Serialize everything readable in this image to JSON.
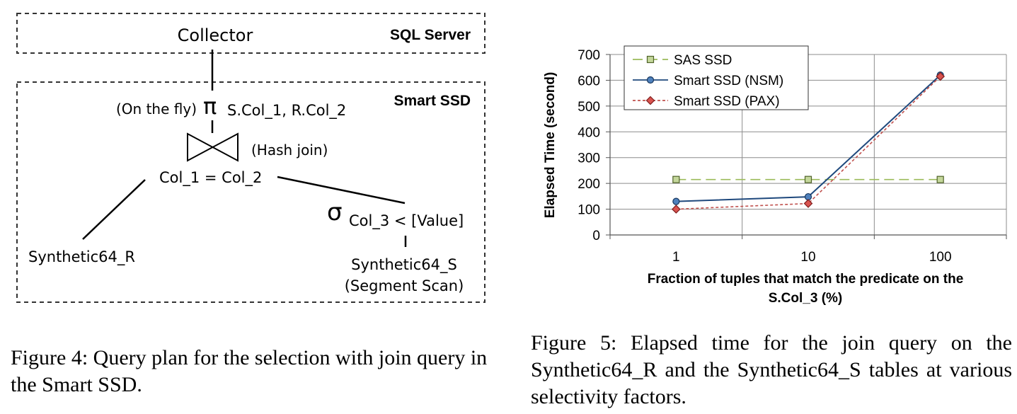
{
  "figure4": {
    "top_box_label": "SQL Server",
    "bottom_box_label": "Smart SSD",
    "collector": "Collector",
    "projection_prefix": "(On the fly)",
    "projection_symbol": "π",
    "projection_columns": "S.Col_1, R.Col_2",
    "join_label": "(Hash join)",
    "join_condition": "Col_1 = Col_2",
    "selection_symbol": "σ",
    "selection_condition": "Col_3 < [Value]",
    "left_table": "Synthetic64_R",
    "right_table": "Synthetic64_S",
    "right_table_scan": "(Segment Scan)",
    "caption": "Figure 4: Query plan for the selection with join query in the Smart SSD."
  },
  "figure5": {
    "caption": "Figure 5: Elapsed time for the join query on the Synthetic64_R and the Synthetic64_S tables at various selectivity factors."
  },
  "chart_data": {
    "type": "line",
    "x": [
      1,
      10,
      100
    ],
    "x_scale": "log",
    "xlabel_line1": "Fraction of tuples that match the predicate on the",
    "xlabel_line2": "S.Col_3 (%)",
    "ylabel": "Elapsed Time (second)",
    "ylim": [
      0,
      700
    ],
    "yticks": [
      0,
      100,
      200,
      300,
      400,
      500,
      600,
      700
    ],
    "xtick_labels": [
      "1",
      "10",
      "100"
    ],
    "grid": true,
    "legend_position": "top-left",
    "series": [
      {
        "name": "SAS SSD",
        "values": [
          215,
          215,
          215
        ],
        "color": "#9bbb59",
        "style": "dashed",
        "marker": "square"
      },
      {
        "name": "Smart SSD (NSM)",
        "values": [
          130,
          148,
          620
        ],
        "color": "#1f497d",
        "style": "solid",
        "marker": "circle"
      },
      {
        "name": "Smart SSD (PAX)",
        "values": [
          100,
          122,
          615
        ],
        "color": "#c0504d",
        "style": "dotted",
        "marker": "diamond"
      }
    ]
  }
}
